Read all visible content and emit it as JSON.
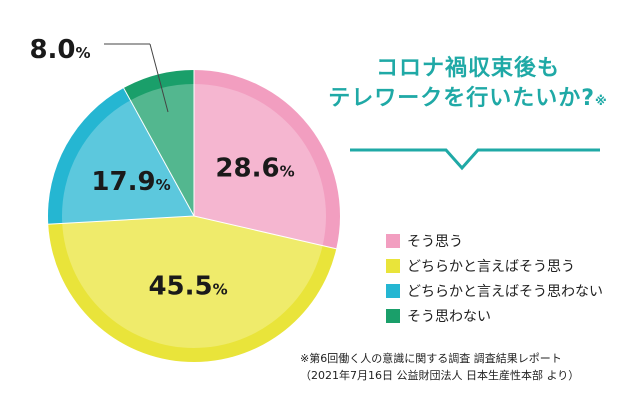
{
  "chart_data": {
    "type": "pie",
    "title_lines": [
      "コロナ禍収束後も",
      "テレワークを行いたいか?"
    ],
    "title_mark": "※",
    "slices": [
      {
        "label": "そう思う",
        "value": 28.6,
        "display": "28.6",
        "color": "#f29ec0"
      },
      {
        "label": "どちらかと言えばそう思う",
        "value": 45.5,
        "display": "45.5",
        "color": "#e9e43a"
      },
      {
        "label": "どちらかと言えばそう思わない",
        "value": 17.9,
        "display": "17.9",
        "color": "#25b6d2"
      },
      {
        "label": "そう思わない",
        "value": 8.0,
        "display": "8.0",
        "color": "#1a9f6a"
      }
    ],
    "unit": "%",
    "legend_position": "right"
  },
  "source": {
    "line1": "※第6回働く人の意識に関する調査  調査結果レポート",
    "line2": "（2021年7月16日 公益財団法人 日本生産性本部 より）"
  },
  "accent_color": "#1fa9a6"
}
